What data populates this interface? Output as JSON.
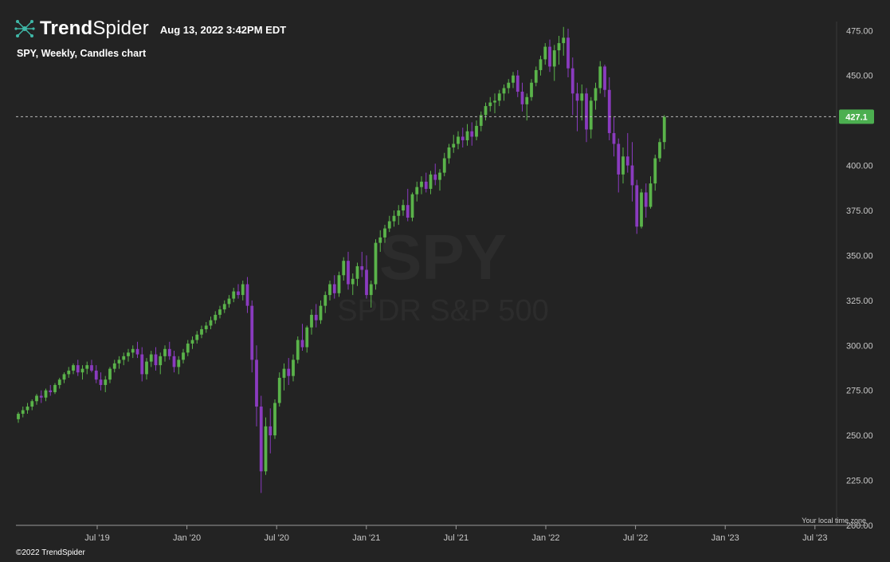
{
  "header": {
    "brand_bold": "Trend",
    "brand_light": "Spider",
    "timestamp": "Aug 13, 2022 3:42PM EDT",
    "subtitle": "SPY, Weekly, Candles chart",
    "logo_icon": "spider-network-icon"
  },
  "watermark": {
    "symbol": "SPY",
    "name": "SPDR S&P 500"
  },
  "footer": {
    "copyright": "©2022 TrendSpider",
    "timezone_note": "Your local time zone"
  },
  "colors": {
    "background": "#232323",
    "up": "#5ab34a",
    "down": "#8a3bbf",
    "last_price_bg": "#4caf50",
    "axis_text": "#c8c8c8"
  },
  "chart_data": {
    "type": "candlestick",
    "symbol": "SPY",
    "interval": "Weekly",
    "ylim": [
      200,
      480
    ],
    "y_ticks": [
      200,
      225,
      250,
      275,
      300,
      325,
      350,
      375,
      400,
      425,
      450,
      475
    ],
    "y_tick_labels": [
      "200.00",
      "225.00",
      "250.00",
      "275.00",
      "300.00",
      "325.00",
      "350.00",
      "375.00",
      "400.00",
      "425.00",
      "450.00",
      "475.00"
    ],
    "y_axis_side": "right",
    "x_tick_labels": [
      "Jul '19",
      "Jan '20",
      "Jul '20",
      "Jan '21",
      "Jul '21",
      "Jan '22",
      "Jul '22",
      "Jan '23",
      "Jul '23"
    ],
    "last_price": 427.1,
    "last_price_label": "427.1",
    "candles": [
      [
        259,
        263,
        257,
        262
      ],
      [
        262,
        266,
        260,
        264
      ],
      [
        264,
        268,
        262,
        266
      ],
      [
        266,
        270,
        264,
        269
      ],
      [
        269,
        273,
        267,
        272
      ],
      [
        272,
        275,
        268,
        271
      ],
      [
        271,
        276,
        269,
        275
      ],
      [
        275,
        278,
        272,
        274
      ],
      [
        274,
        279,
        273,
        278
      ],
      [
        278,
        282,
        276,
        281
      ],
      [
        281,
        285,
        279,
        284
      ],
      [
        284,
        288,
        282,
        286
      ],
      [
        286,
        290,
        284,
        289
      ],
      [
        289,
        292,
        283,
        285
      ],
      [
        285,
        289,
        281,
        287
      ],
      [
        287,
        291,
        284,
        289
      ],
      [
        289,
        292,
        285,
        286
      ],
      [
        286,
        289,
        279,
        281
      ],
      [
        281,
        285,
        275,
        278
      ],
      [
        278,
        283,
        274,
        281
      ],
      [
        281,
        288,
        279,
        287
      ],
      [
        287,
        292,
        285,
        290
      ],
      [
        290,
        294,
        287,
        292
      ],
      [
        292,
        296,
        289,
        294
      ],
      [
        294,
        298,
        291,
        296
      ],
      [
        296,
        300,
        293,
        298
      ],
      [
        298,
        302,
        293,
        295
      ],
      [
        295,
        299,
        280,
        284
      ],
      [
        284,
        293,
        281,
        291
      ],
      [
        291,
        297,
        288,
        295
      ],
      [
        295,
        299,
        286,
        289
      ],
      [
        289,
        296,
        284,
        294
      ],
      [
        294,
        300,
        291,
        298
      ],
      [
        298,
        302,
        292,
        294
      ],
      [
        294,
        297,
        285,
        288
      ],
      [
        288,
        294,
        284,
        292
      ],
      [
        292,
        298,
        290,
        296
      ],
      [
        296,
        303,
        294,
        301
      ],
      [
        301,
        305,
        298,
        303
      ],
      [
        303,
        308,
        301,
        306
      ],
      [
        306,
        311,
        304,
        309
      ],
      [
        309,
        313,
        307,
        311
      ],
      [
        311,
        316,
        309,
        314
      ],
      [
        314,
        319,
        312,
        317
      ],
      [
        317,
        322,
        315,
        320
      ],
      [
        320,
        325,
        318,
        323
      ],
      [
        323,
        328,
        321,
        326
      ],
      [
        326,
        332,
        324,
        330
      ],
      [
        330,
        334,
        326,
        328
      ],
      [
        328,
        336,
        325,
        334
      ],
      [
        334,
        338,
        318,
        322
      ],
      [
        322,
        325,
        285,
        292
      ],
      [
        292,
        300,
        255,
        266
      ],
      [
        266,
        272,
        218,
        230
      ],
      [
        230,
        260,
        228,
        255
      ],
      [
        255,
        265,
        240,
        250
      ],
      [
        250,
        270,
        248,
        268
      ],
      [
        268,
        285,
        266,
        282
      ],
      [
        282,
        290,
        275,
        287
      ],
      [
        287,
        293,
        278,
        283
      ],
      [
        283,
        295,
        280,
        292
      ],
      [
        292,
        305,
        290,
        303
      ],
      [
        303,
        312,
        297,
        299
      ],
      [
        299,
        311,
        296,
        310
      ],
      [
        310,
        320,
        306,
        317
      ],
      [
        317,
        323,
        310,
        314
      ],
      [
        314,
        325,
        312,
        322
      ],
      [
        322,
        330,
        318,
        328
      ],
      [
        328,
        336,
        325,
        334
      ],
      [
        334,
        339,
        326,
        329
      ],
      [
        329,
        341,
        327,
        339
      ],
      [
        339,
        349,
        336,
        347
      ],
      [
        347,
        352,
        331,
        334
      ],
      [
        334,
        340,
        328,
        337
      ],
      [
        337,
        346,
        333,
        344
      ],
      [
        344,
        352,
        338,
        342
      ],
      [
        342,
        350,
        326,
        328
      ],
      [
        328,
        336,
        321,
        334
      ],
      [
        334,
        359,
        331,
        357
      ],
      [
        357,
        364,
        352,
        360
      ],
      [
        360,
        367,
        357,
        365
      ],
      [
        365,
        372,
        363,
        369
      ],
      [
        369,
        375,
        366,
        372
      ],
      [
        372,
        378,
        367,
        375
      ],
      [
        375,
        381,
        372,
        378
      ],
      [
        378,
        387,
        369,
        371
      ],
      [
        371,
        385,
        369,
        384
      ],
      [
        384,
        391,
        380,
        388
      ],
      [
        388,
        394,
        384,
        391
      ],
      [
        391,
        396,
        385,
        387
      ],
      [
        387,
        397,
        384,
        395
      ],
      [
        395,
        401,
        389,
        392
      ],
      [
        392,
        398,
        386,
        396
      ],
      [
        396,
        407,
        394,
        404
      ],
      [
        404,
        412,
        401,
        410
      ],
      [
        410,
        417,
        407,
        412
      ],
      [
        412,
        419,
        409,
        416
      ],
      [
        416,
        421,
        410,
        414
      ],
      [
        414,
        423,
        411,
        419
      ],
      [
        419,
        424,
        411,
        416
      ],
      [
        416,
        425,
        414,
        422
      ],
      [
        422,
        430,
        419,
        428
      ],
      [
        428,
        435,
        425,
        433
      ],
      [
        433,
        438,
        430,
        435
      ],
      [
        435,
        440,
        429,
        436
      ],
      [
        436,
        442,
        433,
        440
      ],
      [
        440,
        445,
        436,
        443
      ],
      [
        443,
        448,
        440,
        446
      ],
      [
        446,
        452,
        443,
        450
      ],
      [
        450,
        453,
        438,
        441
      ],
      [
        441,
        446,
        430,
        434
      ],
      [
        434,
        440,
        425,
        438
      ],
      [
        438,
        448,
        436,
        446
      ],
      [
        446,
        455,
        444,
        453
      ],
      [
        453,
        461,
        450,
        459
      ],
      [
        459,
        468,
        456,
        466
      ],
      [
        466,
        470,
        452,
        455
      ],
      [
        455,
        467,
        447,
        464
      ],
      [
        464,
        472,
        456,
        468
      ],
      [
        468,
        477,
        461,
        471
      ],
      [
        471,
        476,
        449,
        454
      ],
      [
        454,
        460,
        428,
        440
      ],
      [
        440,
        446,
        419,
        436
      ],
      [
        436,
        445,
        425,
        440
      ],
      [
        440,
        443,
        413,
        420
      ],
      [
        420,
        438,
        415,
        436
      ],
      [
        436,
        446,
        431,
        443
      ],
      [
        443,
        458,
        440,
        455
      ],
      [
        455,
        456,
        438,
        442
      ],
      [
        442,
        449,
        414,
        418
      ],
      [
        418,
        427,
        405,
        412
      ],
      [
        412,
        415,
        385,
        395
      ],
      [
        395,
        410,
        390,
        405
      ],
      [
        405,
        418,
        396,
        400
      ],
      [
        400,
        413,
        380,
        389
      ],
      [
        389,
        392,
        362,
        366
      ],
      [
        366,
        387,
        365,
        385
      ],
      [
        385,
        390,
        371,
        377
      ],
      [
        377,
        394,
        376,
        390
      ],
      [
        390,
        406,
        386,
        404
      ],
      [
        404,
        415,
        402,
        413
      ],
      [
        413,
        428,
        409,
        427
      ]
    ]
  }
}
